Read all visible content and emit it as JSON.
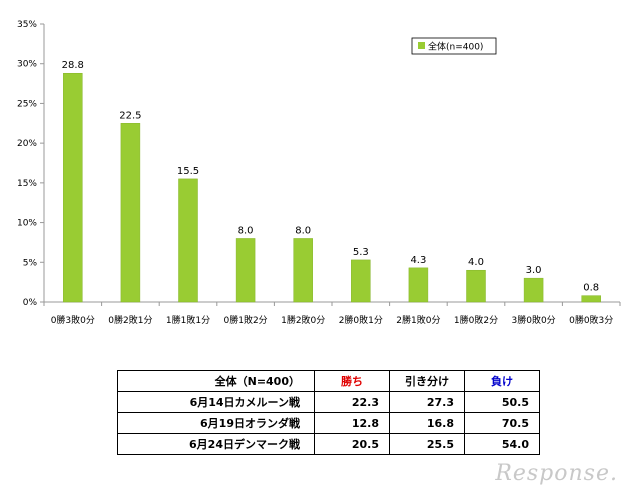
{
  "chart_data": {
    "type": "bar",
    "categories": [
      "0勝3敗0分",
      "0勝2敗1分",
      "1勝1敗1分",
      "0勝1敗2分",
      "1勝2敗0分",
      "2勝0敗1分",
      "2勝1敗0分",
      "1勝0敗2分",
      "3勝0敗0分",
      "0勝0敗3分"
    ],
    "series": [
      {
        "name": "全体(n=400)",
        "values": [
          28.8,
          22.5,
          15.5,
          8.0,
          8.0,
          5.3,
          4.3,
          4.0,
          3.0,
          0.8
        ]
      }
    ],
    "value_labels": [
      "28.8",
      "22.5",
      "15.5",
      "8.0",
      "8.0",
      "5.3",
      "4.3",
      "4.0",
      "3.0",
      "0.8"
    ],
    "y_ticks": [
      "0%",
      "5%",
      "10%",
      "15%",
      "20%",
      "25%",
      "30%",
      "35%"
    ],
    "ylim": [
      0,
      35
    ],
    "grid": false,
    "legend": "top-right",
    "colors": {
      "bar": "#99cc33",
      "bar_edge": "#86b52a",
      "axis": "#999999"
    }
  },
  "table": {
    "headers": [
      "全体（N=400）",
      "勝ち",
      "引き分け",
      "負け"
    ],
    "rows": [
      {
        "label": "6月14日カメルーン戦",
        "values": [
          "22.3",
          "27.3",
          "50.5"
        ]
      },
      {
        "label": "6月19日オランダ戦",
        "values": [
          "12.8",
          "16.8",
          "70.5"
        ]
      },
      {
        "label": "6月24日デンマーク戦",
        "values": [
          "20.5",
          "25.5",
          "54.0"
        ]
      }
    ],
    "colors": {
      "win": "#e00000",
      "loss": "#0000cc"
    }
  },
  "watermark": "Response."
}
